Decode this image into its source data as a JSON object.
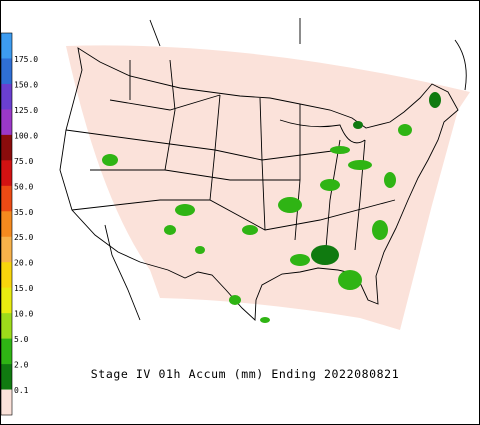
{
  "title": "Stage IV 01h Accum (mm) Ending 2022080821",
  "legend": {
    "labels": [
      "175.0",
      "150.0",
      "125.0",
      "100.0",
      "75.0",
      "50.0",
      "35.0",
      "25.0",
      "20.0",
      "15.0",
      "10.0",
      "5.0",
      "2.0",
      "0.1"
    ],
    "colors": [
      "#3d9cf0",
      "#2f6fd6",
      "#6a3fd0",
      "#9b38c8",
      "#8a0c0c",
      "#d21212",
      "#ec4a14",
      "#f58a1e",
      "#f7b24a",
      "#f8d60c",
      "#e8ec10",
      "#9ddc1a",
      "#2fb414",
      "#107a10",
      "#fbe2da"
    ]
  }
}
